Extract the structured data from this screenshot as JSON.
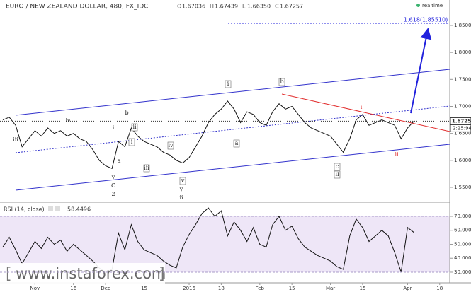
{
  "header": {
    "title": "EURO / NEW ZEALAND DOLLAR, 480, FX_IDC",
    "ohlc": [
      {
        "label": "O",
        "value": "1.67036"
      },
      {
        "label": "H",
        "value": "1.67439"
      },
      {
        "label": "L",
        "value": "1.66350"
      },
      {
        "label": "C",
        "value": "1.67257"
      }
    ],
    "status": "realtime",
    "price_tag": "1.67257",
    "timer_tag": "2:25:94",
    "watermark": "www.instaforex.com"
  },
  "chart_data": [
    {
      "type": "line",
      "color": "#111111",
      "categories": [
        null,
        null,
        null,
        null,
        null,
        "Nov",
        null,
        null,
        null,
        null,
        null,
        "16",
        null,
        null,
        null,
        null,
        "Dec",
        null,
        null,
        null,
        null,
        null,
        "15",
        null,
        null,
        null,
        null,
        null,
        null,
        "2016",
        null,
        null,
        null,
        null,
        "18",
        null,
        null,
        null,
        null,
        null,
        "Feb",
        null,
        null,
        null,
        null,
        "15",
        null,
        null,
        null,
        null,
        null,
        "Mar",
        null,
        null,
        null,
        null,
        "15",
        null,
        null,
        null,
        null,
        null,
        null,
        "Apr",
        null,
        null,
        null,
        null,
        "18",
        null
      ],
      "values": [
        1.675,
        1.68,
        1.665,
        1.625,
        1.64,
        1.655,
        1.645,
        1.66,
        1.65,
        1.655,
        1.645,
        1.65,
        1.64,
        1.635,
        1.62,
        1.6,
        1.59,
        1.585,
        1.635,
        1.625,
        1.66,
        1.645,
        1.635,
        1.63,
        1.625,
        1.615,
        1.61,
        1.6,
        1.595,
        1.605,
        1.625,
        1.645,
        1.67,
        1.685,
        1.695,
        1.71,
        1.695,
        1.67,
        1.69,
        1.685,
        1.67,
        1.665,
        1.69,
        1.705,
        1.695,
        1.7,
        1.685,
        1.67,
        1.66,
        1.655,
        1.65,
        1.645,
        1.63,
        1.615,
        1.64,
        1.675,
        1.685,
        1.665,
        1.67,
        1.675,
        1.67,
        1.665,
        1.64,
        1.66,
        1.67257,
        null,
        null,
        null,
        null,
        null
      ],
      "ylim": [
        1.5264,
        1.8788
      ],
      "yticks": [
        {
          "value": 1.55,
          "label": "1.55000"
        },
        {
          "value": 1.6,
          "label": "1.60000"
        },
        {
          "value": 1.65,
          "label": "1.65000"
        },
        {
          "value": 1.7,
          "label": "1.70000"
        },
        {
          "value": 1.75,
          "label": "1.75000"
        },
        {
          "value": 1.8,
          "label": "1.80000"
        },
        {
          "value": 1.85,
          "label": "1.85000"
        }
      ],
      "annotations": [
        "iii",
        "iv",
        "i",
        "b",
        "ii",
        "a",
        "i",
        "iv",
        "iii",
        "v",
        "C",
        "2",
        "v",
        "y",
        "ii",
        "i",
        "b",
        "a",
        "c",
        "ii",
        "i",
        "ii"
      ],
      "target_label": "1.618(1.85510)"
    },
    {
      "type": "line",
      "color": "#111111",
      "title": "RSI (14, close)",
      "last_value": 58.4496,
      "values": [
        48,
        55,
        46,
        36,
        44,
        52,
        47,
        55,
        50,
        53,
        45,
        50,
        46,
        42,
        38,
        33,
        30,
        32,
        58,
        46,
        64,
        52,
        46,
        44,
        42,
        38,
        35,
        33,
        48,
        57,
        64,
        72,
        76,
        70,
        74,
        56,
        66,
        60,
        52,
        62,
        50,
        48,
        64,
        70,
        60,
        63,
        54,
        48,
        45,
        42,
        40,
        38,
        34,
        32,
        56,
        68,
        62,
        52,
        56,
        60,
        56,
        44,
        30,
        62,
        58.4496,
        null,
        null,
        null,
        null,
        null
      ],
      "ylim": [
        23.4,
        78.1
      ],
      "yticks": [
        {
          "value": 30,
          "label": "30.0000"
        },
        {
          "value": 40,
          "label": "40.0000"
        },
        {
          "value": 50,
          "label": "50.0000"
        },
        {
          "value": 60,
          "label": "60.0000"
        },
        {
          "value": 70,
          "label": "70.0000"
        }
      ],
      "band": [
        30,
        70
      ],
      "band_color": "#eee6f7"
    }
  ]
}
